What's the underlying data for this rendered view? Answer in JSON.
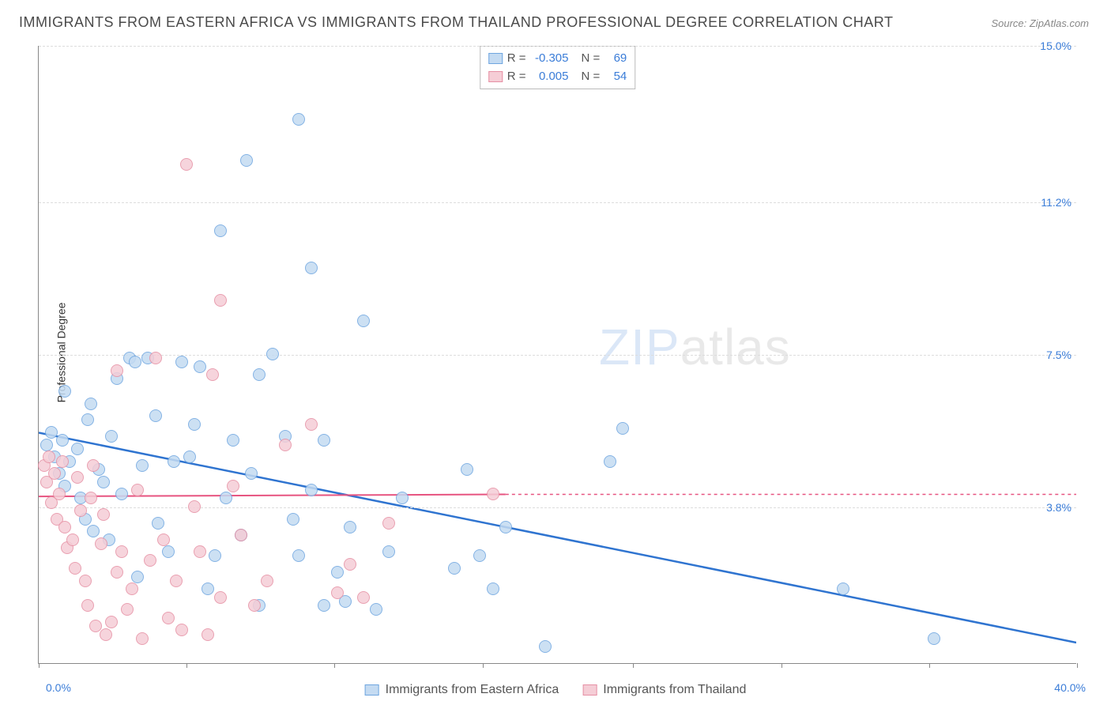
{
  "title": "IMMIGRANTS FROM EASTERN AFRICA VS IMMIGRANTS FROM THAILAND PROFESSIONAL DEGREE CORRELATION CHART",
  "source": "Source: ZipAtlas.com",
  "watermark": {
    "bold": "ZIP",
    "light": "atlas"
  },
  "ylabel": "Professional Degree",
  "chart": {
    "type": "scatter",
    "xlim": [
      0,
      40
    ],
    "ylim": [
      0,
      15
    ],
    "x_label_min": "0.0%",
    "x_label_max": "40.0%",
    "y_ticks": [
      3.8,
      7.5,
      11.2,
      15.0
    ],
    "y_tick_labels": [
      "3.8%",
      "7.5%",
      "11.2%",
      "15.0%"
    ],
    "x_ticks": [
      0,
      5.7,
      11.4,
      17.1,
      22.9,
      28.6,
      34.3,
      40
    ],
    "grid_color": "#dddddd",
    "axis_color": "#888888",
    "background_color": "#ffffff",
    "tick_label_color": "#3b7dd8",
    "title_fontsize": 18,
    "label_fontsize": 14,
    "point_radius": 8,
    "series": [
      {
        "name": "Immigrants from Eastern Africa",
        "fill": "#c4dbf2",
        "stroke": "#6fa6e0",
        "R": "-0.305",
        "N": "69",
        "trend": {
          "x1": 0,
          "y1": 5.6,
          "x2": 40,
          "y2": 0.5,
          "color": "#2f74d0",
          "width": 2.5,
          "dash": "none"
        },
        "points": [
          [
            0.3,
            5.3
          ],
          [
            0.5,
            5.6
          ],
          [
            0.6,
            5.0
          ],
          [
            0.8,
            4.6
          ],
          [
            0.9,
            5.4
          ],
          [
            1.0,
            4.3
          ],
          [
            1.0,
            6.6
          ],
          [
            1.2,
            4.9
          ],
          [
            1.5,
            5.2
          ],
          [
            1.6,
            4.0
          ],
          [
            1.8,
            3.5
          ],
          [
            1.9,
            5.9
          ],
          [
            2.0,
            6.3
          ],
          [
            2.1,
            3.2
          ],
          [
            2.3,
            4.7
          ],
          [
            2.5,
            4.4
          ],
          [
            2.7,
            3.0
          ],
          [
            2.8,
            5.5
          ],
          [
            3.0,
            6.9
          ],
          [
            3.2,
            4.1
          ],
          [
            3.5,
            7.4
          ],
          [
            3.7,
            7.3
          ],
          [
            3.8,
            2.1
          ],
          [
            4.0,
            4.8
          ],
          [
            4.2,
            7.4
          ],
          [
            4.5,
            6.0
          ],
          [
            4.6,
            3.4
          ],
          [
            5.0,
            2.7
          ],
          [
            5.2,
            4.9
          ],
          [
            5.5,
            7.3
          ],
          [
            5.8,
            5.0
          ],
          [
            6.0,
            5.8
          ],
          [
            6.2,
            7.2
          ],
          [
            6.5,
            1.8
          ],
          [
            6.8,
            2.6
          ],
          [
            7.0,
            10.5
          ],
          [
            7.2,
            4.0
          ],
          [
            7.5,
            5.4
          ],
          [
            7.8,
            3.1
          ],
          [
            8.0,
            12.2
          ],
          [
            8.2,
            4.6
          ],
          [
            8.5,
            1.4
          ],
          [
            8.5,
            7.0
          ],
          [
            9.0,
            7.5
          ],
          [
            9.5,
            5.5
          ],
          [
            9.8,
            3.5
          ],
          [
            10.0,
            13.2
          ],
          [
            10.0,
            2.6
          ],
          [
            10.5,
            4.2
          ],
          [
            10.5,
            9.6
          ],
          [
            11.0,
            5.4
          ],
          [
            11.0,
            1.4
          ],
          [
            11.5,
            2.2
          ],
          [
            11.8,
            1.5
          ],
          [
            12.0,
            3.3
          ],
          [
            12.5,
            8.3
          ],
          [
            13.0,
            1.3
          ],
          [
            13.5,
            2.7
          ],
          [
            14.0,
            4.0
          ],
          [
            16.0,
            2.3
          ],
          [
            16.5,
            4.7
          ],
          [
            17.0,
            2.6
          ],
          [
            17.5,
            1.8
          ],
          [
            18.0,
            3.3
          ],
          [
            19.5,
            0.4
          ],
          [
            22.0,
            4.9
          ],
          [
            22.5,
            5.7
          ],
          [
            31.0,
            1.8
          ],
          [
            34.5,
            0.6
          ]
        ]
      },
      {
        "name": "Immigrants from Thailand",
        "fill": "#f5cdd6",
        "stroke": "#e690a4",
        "R": "0.005",
        "N": "54",
        "trend": {
          "x1": 0,
          "y1": 4.05,
          "x2": 18,
          "y2": 4.1,
          "color": "#e75480",
          "width": 2,
          "dash": "none",
          "ext_x2": 40,
          "ext_dash": "4 4"
        },
        "points": [
          [
            0.2,
            4.8
          ],
          [
            0.3,
            4.4
          ],
          [
            0.4,
            5.0
          ],
          [
            0.5,
            3.9
          ],
          [
            0.6,
            4.6
          ],
          [
            0.7,
            3.5
          ],
          [
            0.8,
            4.1
          ],
          [
            0.9,
            4.9
          ],
          [
            1.0,
            3.3
          ],
          [
            1.1,
            2.8
          ],
          [
            1.3,
            3.0
          ],
          [
            1.4,
            2.3
          ],
          [
            1.5,
            4.5
          ],
          [
            1.6,
            3.7
          ],
          [
            1.8,
            2.0
          ],
          [
            1.9,
            1.4
          ],
          [
            2.0,
            4.0
          ],
          [
            2.1,
            4.8
          ],
          [
            2.2,
            0.9
          ],
          [
            2.4,
            2.9
          ],
          [
            2.5,
            3.6
          ],
          [
            2.6,
            0.7
          ],
          [
            2.8,
            1.0
          ],
          [
            3.0,
            2.2
          ],
          [
            3.0,
            7.1
          ],
          [
            3.2,
            2.7
          ],
          [
            3.4,
            1.3
          ],
          [
            3.6,
            1.8
          ],
          [
            3.8,
            4.2
          ],
          [
            4.0,
            0.6
          ],
          [
            4.3,
            2.5
          ],
          [
            4.5,
            7.4
          ],
          [
            4.8,
            3.0
          ],
          [
            5.0,
            1.1
          ],
          [
            5.3,
            2.0
          ],
          [
            5.5,
            0.8
          ],
          [
            5.7,
            12.1
          ],
          [
            6.0,
            3.8
          ],
          [
            6.2,
            2.7
          ],
          [
            6.5,
            0.7
          ],
          [
            6.7,
            7.0
          ],
          [
            7.0,
            8.8
          ],
          [
            7.0,
            1.6
          ],
          [
            7.5,
            4.3
          ],
          [
            7.8,
            3.1
          ],
          [
            8.3,
            1.4
          ],
          [
            8.8,
            2.0
          ],
          [
            9.5,
            5.3
          ],
          [
            10.5,
            5.8
          ],
          [
            11.5,
            1.7
          ],
          [
            12.0,
            2.4
          ],
          [
            12.5,
            1.6
          ],
          [
            13.5,
            3.4
          ],
          [
            17.5,
            4.1
          ]
        ]
      }
    ]
  },
  "legend": {
    "items": [
      {
        "label": "Immigrants from Eastern Africa",
        "fill": "#c4dbf2",
        "stroke": "#6fa6e0"
      },
      {
        "label": "Immigrants from Thailand",
        "fill": "#f5cdd6",
        "stroke": "#e690a4"
      }
    ]
  }
}
